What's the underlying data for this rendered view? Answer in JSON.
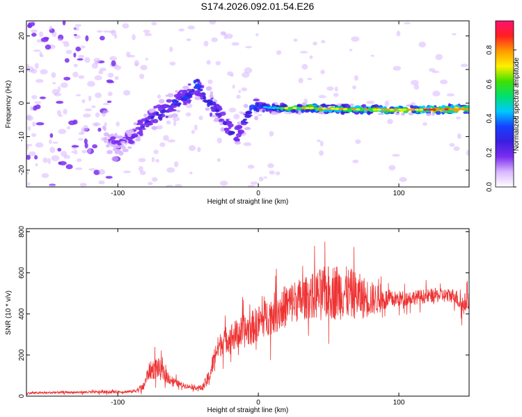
{
  "figure_title": "S174.2026.092.01.54.E26",
  "colormap": [
    "#ffffff",
    "#d9b7ff",
    "#7a2df0",
    "#3a1fe0",
    "#1540ff",
    "#00c8ff",
    "#00e070",
    "#40e000",
    "#fff000",
    "#ff9a00",
    "#ff2020",
    "#ff1070"
  ],
  "line_color": "#ee3333",
  "chart_data": [
    {
      "type": "heatmap",
      "title": "",
      "xlabel": "Height of straight line (km)",
      "ylabel": "Frequency (Hz)",
      "xlim": [
        -165,
        150
      ],
      "ylim": [
        -25,
        24.5
      ],
      "xticks": [
        -100,
        0,
        100
      ],
      "yticks": [
        -20,
        -10,
        0,
        10,
        20
      ],
      "colorbar": {
        "label": "Normalized spectral amplitude",
        "range": [
          0,
          0.97
        ],
        "ticks": [
          0.0,
          0.2,
          0.4,
          0.6,
          0.8
        ]
      },
      "ridge": {
        "x": [
          -165,
          -100,
          -90,
          -80,
          -70,
          -60,
          -50,
          -45,
          -40,
          -35,
          -30,
          -25,
          -20,
          -15,
          -10,
          -5,
          0,
          10,
          20,
          40,
          60,
          80,
          100,
          120,
          150
        ],
        "freq": [
          0,
          -12,
          -10,
          -6,
          -3,
          0,
          2,
          6,
          3,
          0,
          -2,
          -5,
          -8,
          -10,
          -5,
          -2,
          -1,
          -1.5,
          -1.5,
          -1.5,
          -1.8,
          -2,
          -2,
          -2,
          -1.8
        ],
        "amplitude": [
          0.05,
          0.2,
          0.25,
          0.3,
          0.35,
          0.35,
          0.4,
          0.45,
          0.4,
          0.35,
          0.35,
          0.3,
          0.3,
          0.3,
          0.35,
          0.4,
          0.45,
          0.55,
          0.7,
          0.8,
          0.8,
          0.8,
          0.85,
          0.9,
          0.95
        ]
      }
    },
    {
      "type": "line",
      "title": "",
      "xlabel": "Height of straight line (km)",
      "ylabel": "SNR (10 * v/v)",
      "xlim": [
        -165,
        150
      ],
      "ylim": [
        0,
        815
      ],
      "xticks": [
        -100,
        0,
        100
      ],
      "yticks": [
        0,
        200,
        400,
        600,
        800
      ],
      "series": [
        {
          "name": "SNR",
          "x": [
            -165,
            -140,
            -110,
            -90,
            -82,
            -78,
            -72,
            -66,
            -60,
            -55,
            -48,
            -40,
            -35,
            -30,
            -25,
            -15,
            -5,
            5,
            15,
            25,
            35,
            45,
            55,
            65,
            75,
            85,
            95,
            110,
            125,
            140,
            145,
            150
          ],
          "mean": [
            15,
            18,
            20,
            22,
            40,
            120,
            140,
            100,
            70,
            55,
            45,
            40,
            90,
            220,
            270,
            300,
            330,
            380,
            420,
            460,
            480,
            500,
            510,
            500,
            480,
            470,
            470,
            480,
            490,
            490,
            440,
            470
          ],
          "amp": [
            8,
            8,
            10,
            10,
            30,
            60,
            80,
            50,
            30,
            20,
            15,
            20,
            60,
            80,
            90,
            110,
            120,
            130,
            150,
            150,
            150,
            180,
            200,
            180,
            150,
            100,
            60,
            50,
            50,
            50,
            80,
            60
          ]
        }
      ]
    }
  ]
}
